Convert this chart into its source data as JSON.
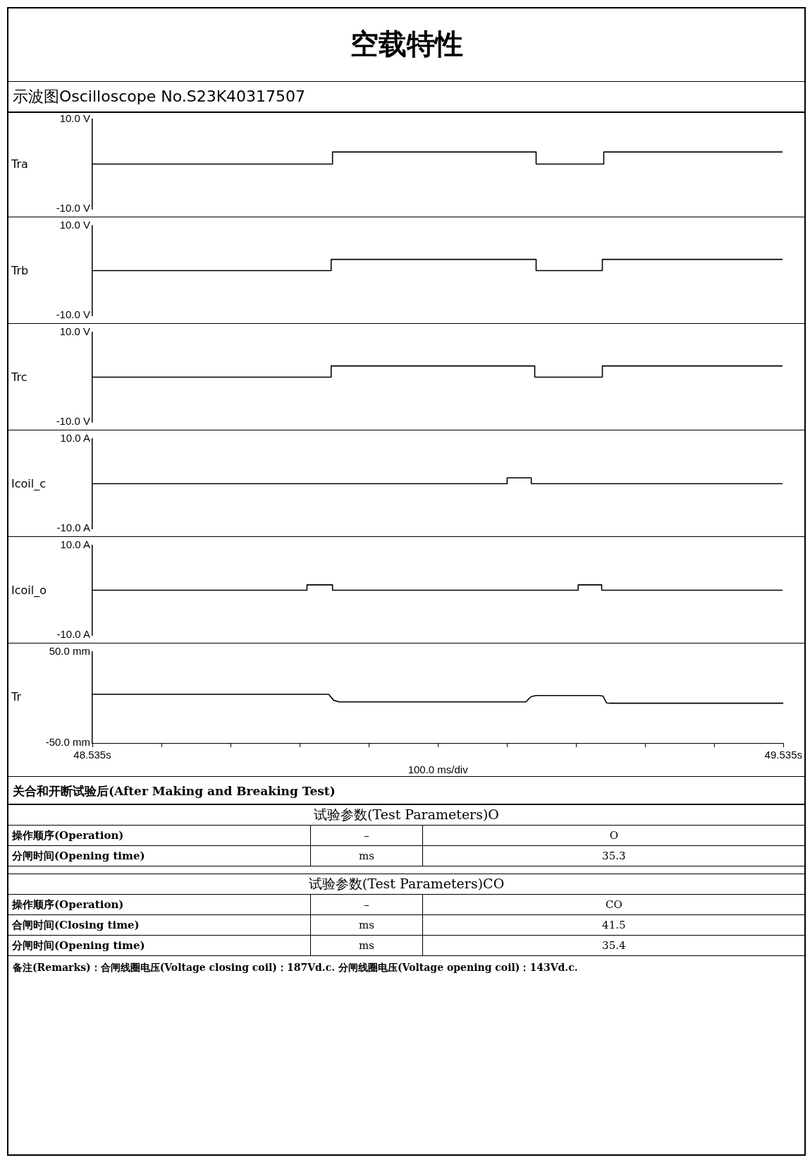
{
  "chart_data": [
    {
      "type": "step",
      "title": "空载特性",
      "subtitle": "示波图Oscilloscope No.S23K40317507",
      "ylabel": "Tra",
      "xlim": [
        48.535,
        49.535
      ],
      "ylim": [
        -10,
        10
      ],
      "yticks": [
        {
          "value": -10,
          "label": "-10.0 V"
        },
        {
          "value": 10,
          "label": "10.0 V"
        }
      ],
      "tick_labels": "y",
      "series": [
        {
          "color": "#000000",
          "x": [
            48.535,
            48.883,
            49.178,
            49.276,
            49.535
          ],
          "values": [
            0,
            0,
            2.7,
            0,
            2.7
          ]
        }
      ]
    },
    {
      "type": "step",
      "ylabel": "Trb",
      "xlim": [
        48.535,
        49.535
      ],
      "ylim": [
        -10,
        10
      ],
      "yticks": [
        {
          "value": -10,
          "label": "-10.0 V"
        },
        {
          "value": 10,
          "label": "10.0 V"
        }
      ],
      "tick_labels": "y",
      "series": [
        {
          "color": "#000000",
          "x": [
            48.535,
            48.881,
            49.178,
            49.274,
            49.535
          ],
          "values": [
            0,
            0,
            2.5,
            0,
            2.5
          ]
        }
      ]
    },
    {
      "type": "step",
      "ylabel": "Trc",
      "xlim": [
        48.535,
        49.535
      ],
      "ylim": [
        -10,
        10
      ],
      "yticks": [
        {
          "value": -10,
          "label": "-10.0 V"
        },
        {
          "value": 10,
          "label": "10.0 V"
        }
      ],
      "tick_labels": "y",
      "series": [
        {
          "color": "#000000",
          "x": [
            48.535,
            48.881,
            49.176,
            49.274,
            49.535
          ],
          "values": [
            0,
            0,
            2.5,
            0,
            2.5
          ]
        }
      ]
    },
    {
      "type": "step",
      "ylabel": "Icoil_c",
      "xlim": [
        48.535,
        49.535
      ],
      "ylim": [
        -10,
        10
      ],
      "yticks": [
        {
          "value": -10,
          "label": "-10.0 A"
        },
        {
          "value": 10,
          "label": "10.0 A"
        }
      ],
      "tick_labels": "y",
      "series": [
        {
          "color": "#000000",
          "x": [
            48.535,
            49.136,
            49.171,
            49.535
          ],
          "values": [
            0,
            0,
            1.3,
            0
          ]
        }
      ]
    },
    {
      "type": "step",
      "ylabel": "Icoil_o",
      "xlim": [
        48.535,
        49.535
      ],
      "ylim": [
        -10,
        10
      ],
      "yticks": [
        {
          "value": -10,
          "label": "-10.0 A"
        },
        {
          "value": 10,
          "label": "10.0 A"
        }
      ],
      "tick_labels": "y",
      "series": [
        {
          "color": "#000000",
          "x": [
            48.535,
            48.846,
            48.883,
            49.239,
            49.273,
            49.535
          ],
          "values": [
            0,
            0,
            1.2,
            0,
            1.2,
            0
          ]
        }
      ]
    },
    {
      "type": "line",
      "ylabel": "Tr",
      "xlabel": "100.0 ms/div",
      "xlim": [
        48.535,
        49.535
      ],
      "ylim": [
        -50,
        50
      ],
      "yticks": [
        {
          "value": -50,
          "label": "-50.0 mm"
        },
        {
          "value": 50,
          "label": "50.0 mm"
        }
      ],
      "xticks": [
        {
          "value": 48.535,
          "label": "48.535s"
        },
        {
          "value": 48.635,
          "label": null
        },
        {
          "value": 48.735,
          "label": null
        },
        {
          "value": 48.835,
          "label": null
        },
        {
          "value": 48.935,
          "label": null
        },
        {
          "value": 49.035,
          "label": null
        },
        {
          "value": 49.135,
          "label": null
        },
        {
          "value": 49.235,
          "label": null
        },
        {
          "value": 49.335,
          "label": null
        },
        {
          "value": 49.435,
          "label": null
        },
        {
          "value": 49.535,
          "label": "49.535s"
        }
      ],
      "series": [
        {
          "color": "#000000",
          "x": [
            48.535,
            48.877,
            48.884,
            48.892,
            49.162,
            49.17,
            49.177,
            49.268,
            49.274,
            49.279,
            49.285,
            49.535
          ],
          "values": [
            3.5,
            3.5,
            -3,
            -4.9,
            -4.9,
            1,
            2.1,
            2.1,
            1.5,
            -6,
            -6.3,
            -6.3
          ]
        }
      ]
    },
    {
      "type": "other",
      "title": "关合和开断试验后(After Making and Breaking Test)",
      "cell_labels": [
        [
          "试验参数(Test Parameters)O"
        ],
        [
          "操作顺序(Operation)",
          "–",
          "O"
        ],
        [
          "分闸时间(Opening time)",
          "ms",
          "35.3"
        ],
        [
          "试验参数(Test Parameters)CO"
        ],
        [
          "操作顺序(Operation)",
          "–",
          "CO"
        ],
        [
          "合闸时间(Closing time)",
          "ms",
          "41.5"
        ],
        [
          "分闸时间(Opening time)",
          "ms",
          "35.4"
        ]
      ],
      "annotations": [
        "备注(Remarks)：合闸线圈电压(Voltage closing coil)：187Vd.c. 分闸线圈电压(Voltage opening coil)：143Vd.c."
      ]
    }
  ]
}
